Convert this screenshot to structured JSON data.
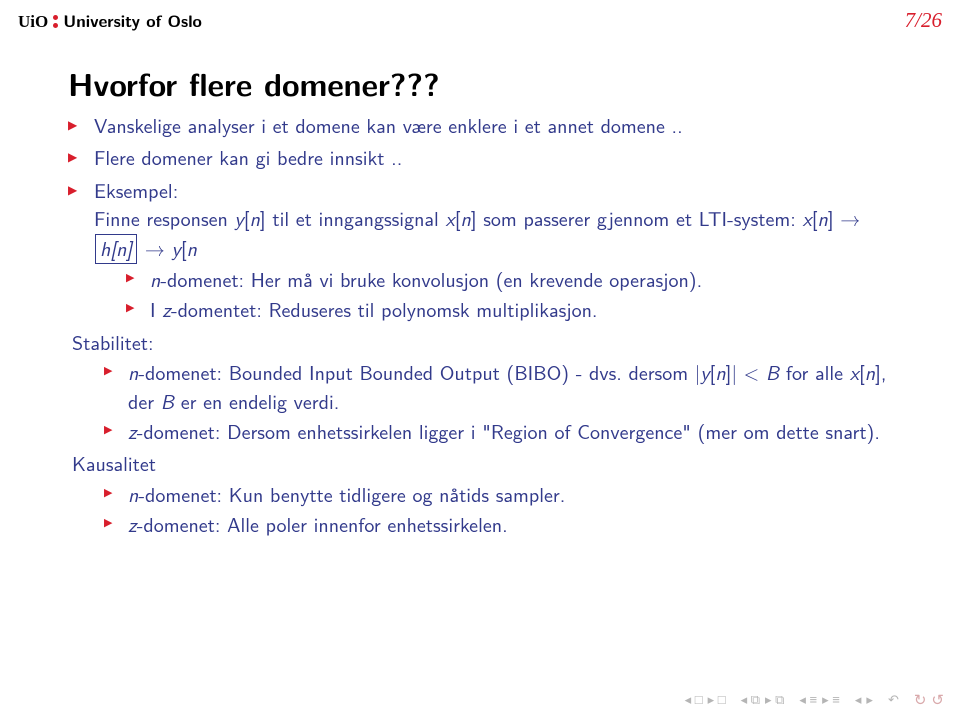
{
  "header": {
    "brand_uio": "UiO",
    "brand_univ": "University of Oslo",
    "page": "7/26"
  },
  "title": "Hvorfor flere domener???",
  "colors": {
    "accent_red": "#d81e2c",
    "body_blue": "#323a8b",
    "nav_grey": "#b5b5b5",
    "nav_pink": "#d9a9ab",
    "background": "#ffffff",
    "text_black": "#000000"
  },
  "font": {
    "title_size_pt": 24,
    "body_size_pt": 15,
    "header_size_pt": 13
  },
  "bullets": [
    {
      "text": "Vanskelige analyser i et domene kan være enklere i et annet domene .."
    },
    {
      "text": "Flere domener kan gi bedre innsikt .."
    },
    {
      "segments": [
        "Eksempel:",
        "Finne responsen ",
        "y",
        "[",
        "n",
        "] til et inngangssignal ",
        "x",
        "[",
        "n",
        "] som passerer gjennom et LTI-system: ",
        "x",
        "[",
        "n",
        "] → ",
        "h[n]",
        " → ",
        "y",
        "[",
        "n",
        "]"
      ],
      "sub": [
        {
          "segments": [
            "n",
            "-domenet: Her må vi bruke konvolusjon (en krevende operasjon)."
          ]
        },
        {
          "segments": [
            "I ",
            "z",
            "-domentet: Reduseres til polynomsk multiplikasjon."
          ]
        }
      ]
    },
    {
      "label": "Stabilitet:",
      "sub": [
        {
          "segments": [
            "n",
            "-domenet: Bounded Input Bounded Output (BIBO) - dvs. dersom |",
            "y",
            "[",
            "n",
            "]| < ",
            "B",
            " for alle ",
            "x",
            "[",
            "n",
            "], der ",
            "B",
            " er en endelig verdi."
          ]
        },
        {
          "segments": [
            "z",
            "-domenet: Dersom enhetssirkelen ligger i \"Region of Convergence\" (mer om dette snart)."
          ]
        }
      ]
    },
    {
      "label": "Kausalitet",
      "sub": [
        {
          "segments": [
            "n",
            "-domenet: Kun benytte tidligere og nåtids sampler."
          ]
        },
        {
          "segments": [
            "z",
            "-domenet: Alle poler innenfor enhetssirkelen."
          ]
        }
      ]
    }
  ],
  "nav": {
    "frame_back": "◂ □",
    "frame_fwd": "▸ □",
    "sub_back": "◂ ⧉",
    "sub_fwd": "▸ ⧉",
    "sect_back": "◂ ≡",
    "sect_fwd": "▸ ≡",
    "slide_back": "◂",
    "slide_fwd": "▸",
    "back": "↶",
    "loop1": "↻",
    "loop2": "↺"
  }
}
